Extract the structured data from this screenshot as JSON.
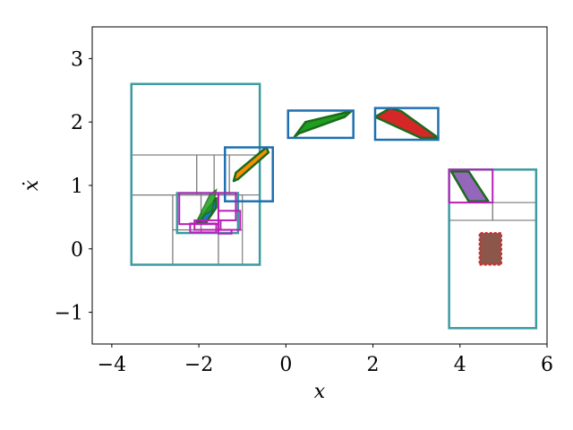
{
  "chart_data": {
    "type": "scatter",
    "xlabel": "x",
    "ylabel": "ẋ",
    "xlim": [
      -4.45,
      6.0
    ],
    "ylim": [
      -1.5,
      3.5
    ],
    "xticks": [
      -4,
      -2,
      0,
      2,
      4,
      6
    ],
    "yticks": [
      -1,
      0,
      1,
      2,
      3
    ],
    "xtick_labels": [
      "−4",
      "−2",
      "0",
      "2",
      "4",
      "6"
    ],
    "ytick_labels": [
      "−1",
      "0",
      "1",
      "2",
      "3"
    ],
    "grid": false,
    "legend": "none",
    "gray_boxes": [
      [
        -3.55,
        0.85,
        -2.05,
        1.48
      ],
      [
        -2.05,
        0.85,
        -1.65,
        1.48
      ],
      [
        -1.65,
        0.85,
        -1.3,
        1.48
      ],
      [
        -1.3,
        0.85,
        -0.6,
        1.48
      ],
      [
        -2.6,
        0.3,
        -1.55,
        0.85
      ],
      [
        -2.6,
        -0.25,
        -1.55,
        0.3
      ],
      [
        -1.55,
        -0.25,
        -1.0,
        0.3
      ],
      [
        -1.55,
        0.3,
        -1.0,
        0.85
      ],
      [
        -3.55,
        -0.25,
        -2.6,
        0.85
      ],
      [
        -2.5,
        0.25,
        -1.95,
        0.88
      ],
      [
        -1.95,
        0.25,
        -1.1,
        0.88
      ],
      [
        3.75,
        0.73,
        4.75,
        0.45
      ],
      [
        4.75,
        0.73,
        5.75,
        0.45
      ]
    ],
    "teal_boxes": [
      [
        -3.55,
        -0.25,
        -0.6,
        2.6
      ],
      [
        -2.5,
        0.25,
        -1.1,
        0.88
      ],
      [
        3.75,
        -1.25,
        5.75,
        1.25
      ]
    ],
    "blue_boxes": [
      [
        -1.4,
        0.75,
        -0.3,
        1.6
      ],
      [
        0.05,
        1.75,
        1.55,
        2.18
      ],
      [
        2.05,
        1.72,
        3.5,
        2.22
      ]
    ],
    "magenta_boxes": [
      [
        -2.45,
        0.39,
        -1.55,
        0.88
      ],
      [
        -1.55,
        0.45,
        -1.15,
        0.88
      ],
      [
        -1.55,
        0.3,
        -1.05,
        0.6
      ],
      [
        -2.2,
        0.26,
        -1.6,
        0.4
      ],
      [
        -2.1,
        0.3,
        -1.5,
        0.45
      ],
      [
        -1.55,
        0.24,
        -1.25,
        0.3
      ],
      [
        3.75,
        0.73,
        4.75,
        1.25
      ]
    ],
    "polygons": [
      {
        "color": "#1f9e1f",
        "points": [
          [
            0.2,
            1.77
          ],
          [
            0.45,
            2.0
          ],
          [
            1.5,
            2.17
          ],
          [
            1.35,
            2.08
          ],
          [
            0.3,
            1.82
          ]
        ]
      },
      {
        "color": "#d62728",
        "points": [
          [
            2.05,
            2.08
          ],
          [
            2.4,
            2.22
          ],
          [
            2.65,
            2.17
          ],
          [
            3.5,
            1.75
          ],
          [
            3.1,
            1.75
          ]
        ]
      },
      {
        "color": "#ff8c00",
        "points": [
          [
            -1.2,
            1.07
          ],
          [
            -1.15,
            1.2
          ],
          [
            -0.45,
            1.6
          ],
          [
            -0.4,
            1.52
          ],
          [
            -1.1,
            1.1
          ]
        ]
      },
      {
        "color": "#1f77b4",
        "points": [
          [
            -2.05,
            0.43
          ],
          [
            -1.95,
            0.5
          ],
          [
            -1.6,
            0.8
          ],
          [
            -1.6,
            0.65
          ],
          [
            -1.85,
            0.4
          ]
        ]
      },
      {
        "color": "#9467bd",
        "points": [
          [
            3.8,
            1.22
          ],
          [
            4.2,
            1.22
          ],
          [
            4.65,
            0.75
          ],
          [
            4.2,
            0.75
          ]
        ]
      },
      {
        "color": "#8c564b",
        "points": [
          [
            4.45,
            -0.25
          ],
          [
            4.95,
            -0.25
          ],
          [
            4.95,
            0.25
          ],
          [
            4.45,
            0.25
          ]
        ]
      }
    ],
    "green_fill": [
      [
        -1.75,
        0.85
      ],
      [
        -1.6,
        0.93
      ],
      [
        -1.7,
        0.6
      ],
      [
        -1.85,
        0.55
      ],
      [
        -1.95,
        0.45
      ],
      [
        -2.05,
        0.43
      ]
    ]
  }
}
